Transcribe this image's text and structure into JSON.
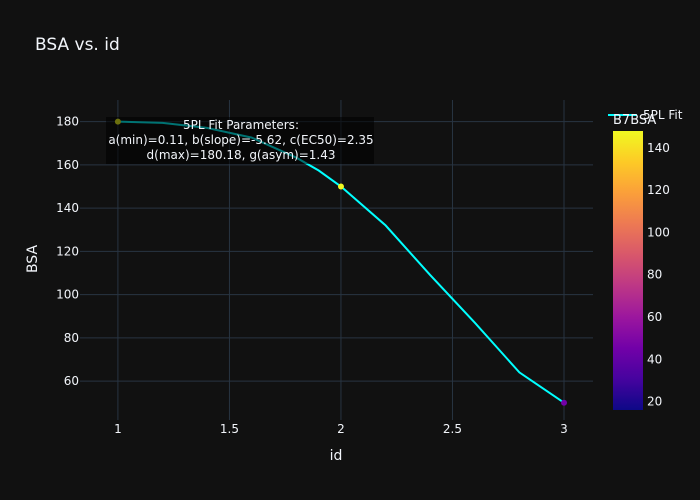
{
  "chart_data": {
    "type": "scatter",
    "title": "BSA vs. id",
    "xlabel": "id",
    "ylabel": "BSA",
    "xlim": [
      0.83,
      3.13
    ],
    "ylim": [
      42,
      190
    ],
    "x_ticks": [
      1,
      1.5,
      2,
      2.5,
      3
    ],
    "x_tick_labels": [
      "1",
      "1.5",
      "2",
      "2.5",
      "3"
    ],
    "y_ticks": [
      60,
      80,
      100,
      120,
      140,
      160,
      180
    ],
    "y_tick_labels": [
      "60",
      "80",
      "100",
      "120",
      "140",
      "160",
      "180"
    ],
    "grid": true,
    "points": {
      "x": [
        1,
        2,
        3
      ],
      "y": [
        180,
        150,
        50
      ],
      "color_values": [
        180,
        150,
        50
      ]
    },
    "fit_line": {
      "name": "5PL Fit",
      "color": "#00ffff",
      "x": [
        1,
        1.2,
        1.4,
        1.6,
        1.8,
        1.9,
        2,
        2.2,
        2.4,
        2.6,
        2.8,
        3
      ],
      "y": [
        180,
        179.4,
        177.1,
        172.6,
        163.3,
        157.4,
        150,
        132,
        109,
        87,
        64,
        50
      ]
    },
    "annotation": {
      "lines": [
        "5PL Fit Parameters:",
        "a(min)=0.11, b(slope)=-5.62, c(EC50)=2.35",
        "d(max)=180.18, g(asym)=1.43"
      ]
    },
    "legend": {
      "entry": "5PL Fit",
      "position": "top-right"
    },
    "colorbar": {
      "title": "B7BSA",
      "range": [
        16,
        148
      ],
      "ticks": [
        20,
        40,
        60,
        80,
        100,
        120,
        140
      ],
      "tick_labels": [
        "20",
        "40",
        "60",
        "80",
        "100",
        "120",
        "140"
      ],
      "colorscale": [
        "#0d0887",
        "#46039f",
        "#7201a8",
        "#9c179e",
        "#bd3786",
        "#d8576b",
        "#ed7953",
        "#fb9f3a",
        "#fdca26",
        "#f0f921"
      ]
    },
    "colors": {
      "background": "#111111",
      "grid": "#283442",
      "text": "#f2f5fa"
    }
  }
}
